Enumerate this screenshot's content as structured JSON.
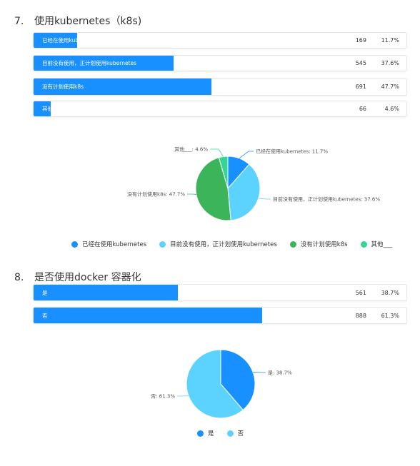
{
  "colors": {
    "bar": "#1890ff",
    "pie": [
      "#1890ff",
      "#5cd3fe",
      "#3cb55a",
      "#35d594"
    ]
  },
  "questions": [
    {
      "number": "7.",
      "title": "使用kubernetes（k8s)"
    },
    {
      "number": "8.",
      "title": "是否使用docker 容器化"
    }
  ],
  "chart_data": [
    {
      "type": "bar",
      "orientation": "horizontal",
      "categories": [
        "已经在使用kubernetes",
        "目前没有使用，正计划使用kubernetes",
        "没有计划使用k8s",
        "其他___"
      ],
      "counts": [
        169,
        545,
        691,
        66
      ],
      "percent_labels": [
        "11.7%",
        "37.6%",
        "47.7%",
        "4.6%"
      ],
      "values": [
        11.7,
        37.6,
        47.7,
        4.6
      ]
    },
    {
      "type": "pie",
      "categories": [
        "已经在使用kubernetes",
        "目前没有使用，正计划使用kubernetes",
        "没有计划使用k8s",
        "其他___"
      ],
      "values": [
        11.7,
        37.6,
        47.7,
        4.6
      ],
      "slice_labels": [
        "已经在使用kubernetes: 11.7%",
        "目前没有使用，正计划使用kubernetes: 37.6%",
        "没有计划使用k8s: 47.7%",
        "其他___: 4.6%"
      ],
      "legend": "bottom"
    },
    {
      "type": "bar",
      "orientation": "horizontal",
      "categories": [
        "是",
        "否"
      ],
      "counts": [
        561,
        888
      ],
      "percent_labels": [
        "38.7%",
        "61.3%"
      ],
      "values": [
        38.7,
        61.3
      ]
    },
    {
      "type": "pie",
      "categories": [
        "是",
        "否"
      ],
      "values": [
        38.7,
        61.3
      ],
      "slice_labels": [
        "是: 38.7%",
        "否: 61.3%"
      ],
      "legend": "bottom"
    }
  ]
}
